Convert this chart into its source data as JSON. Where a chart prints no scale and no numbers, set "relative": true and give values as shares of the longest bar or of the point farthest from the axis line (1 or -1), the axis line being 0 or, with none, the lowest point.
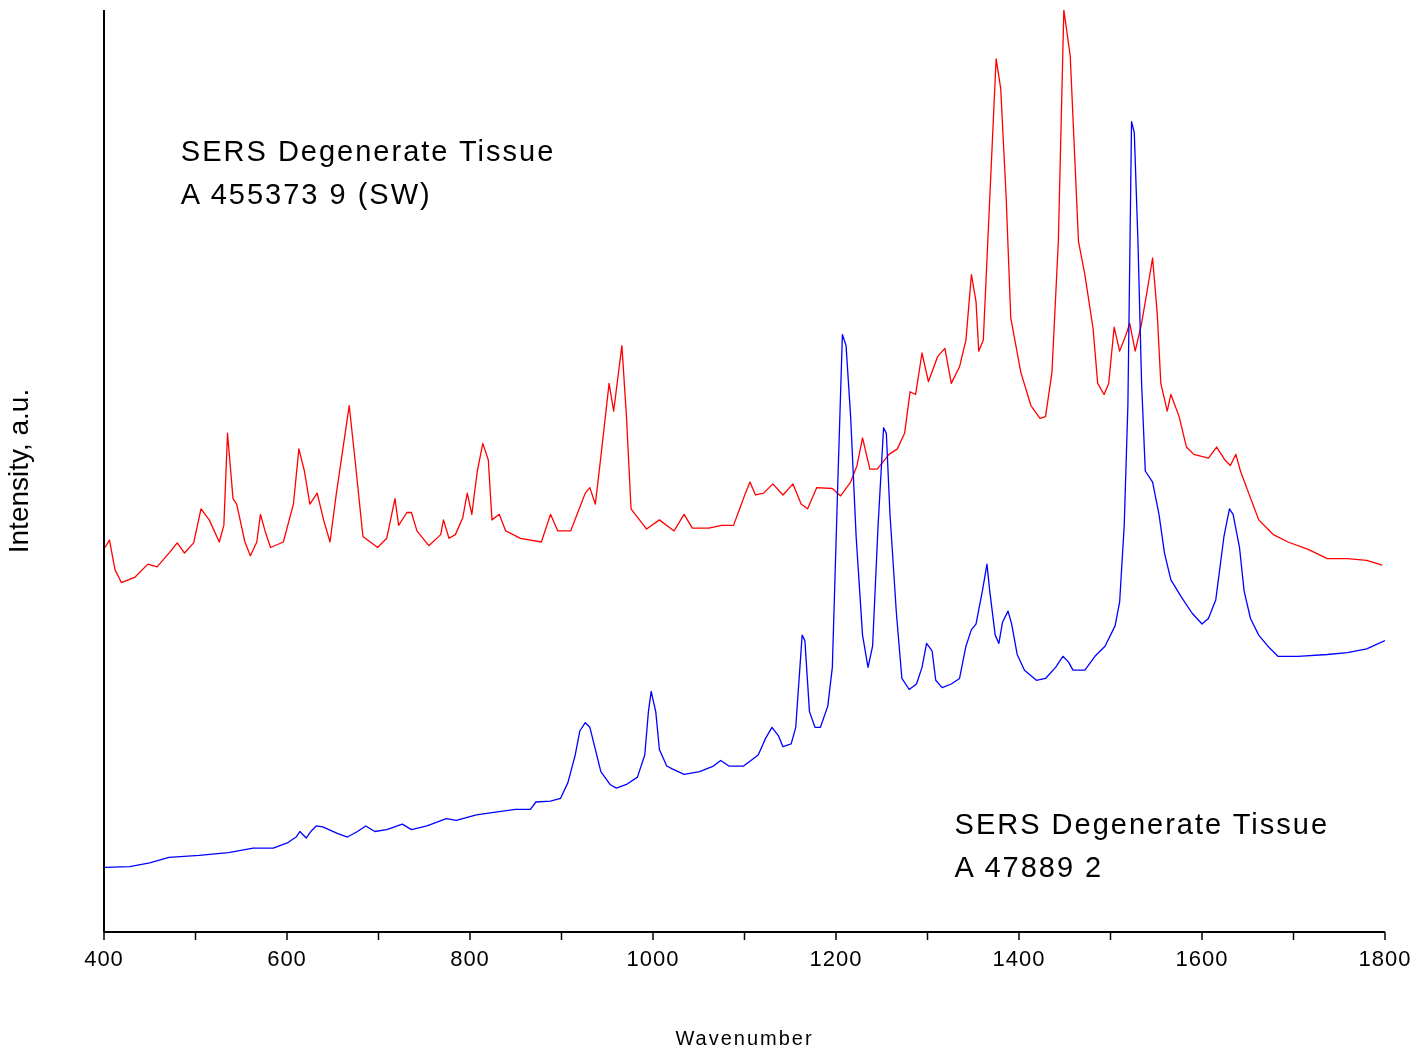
{
  "chart_data": {
    "type": "line",
    "xlabel": "Wavenumber",
    "ylabel": "Intensity, a.u.",
    "relative": true,
    "xlim": [
      400,
      1800
    ],
    "xticks": [
      400,
      {
        "value": 500,
        "label": null
      },
      600,
      {
        "value": 700,
        "label": null
      },
      800,
      {
        "value": 900,
        "label": null
      },
      1000,
      {
        "value": 1100,
        "label": null
      },
      1200,
      {
        "value": 1300,
        "label": null
      },
      1400,
      {
        "value": 1500,
        "label": null
      },
      1600,
      {
        "value": 1700,
        "label": null
      },
      1800
    ],
    "legend": false,
    "grid": false,
    "tick_labels": "x",
    "line_style": "solid",
    "marker": "none",
    "annotations": [
      "SERS Degenerate Tissue\nA 455373 9 (SW)",
      "SERS Degenerate Tissue\nA 47889 2"
    ],
    "series": [
      {
        "color": "#ff0000",
        "x": [
          401,
          406,
          412,
          419,
          434,
          448,
          458,
          471,
          480,
          488,
          498,
          506,
          515,
          526,
          531,
          535,
          541,
          545,
          554,
          560,
          567,
          571,
          576,
          582,
          596,
          607,
          613,
          619,
          625,
          633,
          640,
          647,
          654,
          668,
          675,
          683,
          699,
          709,
          718,
          722,
          731,
          736,
          742,
          755,
          768,
          771,
          777,
          784,
          792,
          797,
          802,
          808,
          814,
          820,
          824,
          832,
          839,
          855,
          878,
          888,
          896,
          910,
          926,
          931,
          937,
          944,
          952,
          957,
          966,
          971,
          976,
          993,
          1007,
          1023,
          1034,
          1043,
          1061,
          1075,
          1088,
          1101,
          1106,
          1112,
          1121,
          1131,
          1142,
          1153,
          1162,
          1169,
          1179,
          1196,
          1205,
          1216,
          1223,
          1229,
          1237,
          1245,
          1258,
          1267,
          1275,
          1281,
          1287,
          1294,
          1301,
          1311,
          1319,
          1326,
          1335,
          1342,
          1348,
          1353,
          1356,
          1361,
          1367,
          1375,
          1380,
          1386,
          1391,
          1402,
          1413,
          1423,
          1429,
          1436,
          1443,
          1449,
          1456,
          1465,
          1472,
          1481,
          1486,
          1493,
          1498,
          1504,
          1510,
          1517,
          1521,
          1527,
          1534,
          1540,
          1546,
          1551,
          1555,
          1562,
          1566,
          1575,
          1583,
          1591,
          1607,
          1616,
          1625,
          1631,
          1637,
          1642,
          1651,
          1662,
          1678,
          1694,
          1716,
          1737,
          1759,
          1780,
          1797
        ],
        "values": [
          0.417,
          0.425,
          0.393,
          0.379,
          0.385,
          0.399,
          0.396,
          0.411,
          0.422,
          0.411,
          0.422,
          0.459,
          0.447,
          0.423,
          0.441,
          0.541,
          0.47,
          0.464,
          0.423,
          0.408,
          0.423,
          0.453,
          0.435,
          0.417,
          0.423,
          0.464,
          0.524,
          0.5,
          0.464,
          0.476,
          0.447,
          0.423,
          0.476,
          0.571,
          0.506,
          0.429,
          0.417,
          0.427,
          0.47,
          0.441,
          0.455,
          0.455,
          0.435,
          0.419,
          0.431,
          0.447,
          0.427,
          0.431,
          0.449,
          0.476,
          0.453,
          0.5,
          0.53,
          0.512,
          0.447,
          0.453,
          0.435,
          0.427,
          0.423,
          0.453,
          0.435,
          0.435,
          0.476,
          0.482,
          0.464,
          0.524,
          0.595,
          0.565,
          0.636,
          0.559,
          0.459,
          0.437,
          0.447,
          0.435,
          0.453,
          0.438,
          0.438,
          0.441,
          0.441,
          0.476,
          0.488,
          0.474,
          0.476,
          0.486,
          0.474,
          0.486,
          0.464,
          0.459,
          0.482,
          0.481,
          0.473,
          0.488,
          0.506,
          0.536,
          0.502,
          0.502,
          0.518,
          0.524,
          0.541,
          0.586,
          0.583,
          0.628,
          0.597,
          0.624,
          0.633,
          0.595,
          0.613,
          0.642,
          0.713,
          0.684,
          0.63,
          0.642,
          0.773,
          0.947,
          0.915,
          0.796,
          0.666,
          0.607,
          0.571,
          0.557,
          0.559,
          0.607,
          0.749,
          1,
          0.95,
          0.749,
          0.713,
          0.654,
          0.595,
          0.583,
          0.595,
          0.656,
          0.63,
          0.648,
          0.66,
          0.63,
          0.66,
          0.695,
          0.731,
          0.672,
          0.595,
          0.565,
          0.583,
          0.559,
          0.526,
          0.518,
          0.514,
          0.526,
          0.512,
          0.506,
          0.518,
          0.5,
          0.476,
          0.447,
          0.431,
          0.423,
          0.415,
          0.405,
          0.405,
          0.403,
          0.398
        ]
      },
      {
        "color": "#0000ff",
        "x": [
          401,
          428,
          450,
          471,
          504,
          536,
          563,
          585,
          601,
          610,
          614,
          621,
          626,
          632,
          639,
          655,
          666,
          677,
          686,
          696,
          709,
          726,
          736,
          753,
          774,
          785,
          807,
          828,
          850,
          866,
          872,
          888,
          899,
          907,
          915,
          920,
          926,
          931,
          937,
          943,
          953,
          960,
          971,
          983,
          991,
          995,
          998,
          1003,
          1007,
          1015,
          1021,
          1034,
          1051,
          1066,
          1074,
          1083,
          1099,
          1115,
          1123,
          1130,
          1137,
          1142,
          1151,
          1156,
          1163,
          1166,
          1171,
          1177,
          1183,
          1191,
          1196,
          1202,
          1207,
          1211,
          1216,
          1222,
          1229,
          1235,
          1240,
          1246,
          1252,
          1255,
          1259,
          1266,
          1272,
          1280,
          1288,
          1294,
          1299,
          1305,
          1309,
          1316,
          1326,
          1335,
          1342,
          1348,
          1353,
          1360,
          1365,
          1368,
          1374,
          1378,
          1382,
          1388,
          1392,
          1398,
          1406,
          1419,
          1429,
          1440,
          1448,
          1454,
          1459,
          1472,
          1483,
          1494,
          1505,
          1510,
          1515,
          1519,
          1523,
          1526,
          1530,
          1534,
          1538,
          1546,
          1553,
          1559,
          1566,
          1577,
          1589,
          1600,
          1607,
          1615,
          1624,
          1630,
          1634,
          1641,
          1646,
          1653,
          1662,
          1672,
          1683,
          1705,
          1737,
          1759,
          1780,
          1800
        ],
        "values": [
          0.07,
          0.071,
          0.075,
          0.081,
          0.083,
          0.086,
          0.091,
          0.091,
          0.097,
          0.103,
          0.109,
          0.102,
          0.109,
          0.115,
          0.114,
          0.107,
          0.103,
          0.109,
          0.115,
          0.109,
          0.111,
          0.117,
          0.111,
          0.115,
          0.123,
          0.121,
          0.127,
          0.13,
          0.133,
          0.133,
          0.141,
          0.142,
          0.145,
          0.162,
          0.192,
          0.218,
          0.227,
          0.222,
          0.198,
          0.174,
          0.16,
          0.156,
          0.16,
          0.168,
          0.192,
          0.239,
          0.261,
          0.239,
          0.198,
          0.18,
          0.177,
          0.171,
          0.174,
          0.18,
          0.186,
          0.18,
          0.18,
          0.192,
          0.21,
          0.222,
          0.213,
          0.201,
          0.204,
          0.222,
          0.322,
          0.316,
          0.239,
          0.222,
          0.222,
          0.245,
          0.287,
          0.488,
          0.648,
          0.636,
          0.559,
          0.429,
          0.322,
          0.287,
          0.31,
          0.441,
          0.547,
          0.541,
          0.453,
          0.346,
          0.275,
          0.263,
          0.269,
          0.287,
          0.313,
          0.305,
          0.273,
          0.265,
          0.269,
          0.275,
          0.31,
          0.328,
          0.334,
          0.37,
          0.399,
          0.37,
          0.322,
          0.313,
          0.336,
          0.348,
          0.334,
          0.301,
          0.284,
          0.273,
          0.275,
          0.287,
          0.299,
          0.293,
          0.284,
          0.284,
          0.299,
          0.31,
          0.332,
          0.358,
          0.441,
          0.571,
          0.879,
          0.867,
          0.749,
          0.595,
          0.5,
          0.488,
          0.453,
          0.411,
          0.382,
          0.364,
          0.346,
          0.334,
          0.34,
          0.36,
          0.429,
          0.459,
          0.453,
          0.417,
          0.37,
          0.34,
          0.322,
          0.31,
          0.299,
          0.299,
          0.301,
          0.303,
          0.307,
          0.316
        ]
      }
    ]
  }
}
